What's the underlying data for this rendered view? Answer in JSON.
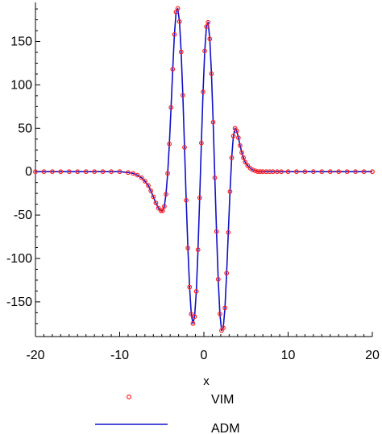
{
  "chart_data": {
    "type": "line",
    "title": "",
    "xlabel": "x",
    "ylabel": "",
    "xlim": [
      -20,
      20
    ],
    "ylim": [
      -190,
      195
    ],
    "x_ticks": [
      -20,
      -10,
      0,
      10,
      20
    ],
    "x_tick_labels": [
      "-20",
      "-10",
      "0",
      "10",
      "20"
    ],
    "y_ticks": [
      -150,
      -100,
      -50,
      0,
      50,
      100,
      150
    ],
    "y_tick_labels": [
      "-150",
      "-100",
      "-50",
      "0",
      "50",
      "100",
      "150"
    ],
    "grid": false,
    "legend_position": "bottom-center",
    "series": [
      {
        "name": "VIM",
        "style": "markers",
        "color": "#ff2222",
        "x": [
          -20,
          -19,
          -18,
          -17,
          -16,
          -15,
          -14,
          -13,
          -12,
          -11,
          -10,
          -9,
          -8.4,
          -7.9,
          -7.4,
          -7,
          -6.6,
          -6.3,
          -6,
          -5.7,
          -5.4,
          -5.1,
          -4.9,
          -4.7,
          -4.5,
          -4.3,
          -4.1,
          -3.9,
          -3.7,
          -3.5,
          -3.3,
          -3.1,
          -2.9,
          -2.7,
          -2.5,
          -2.3,
          -2.1,
          -1.9,
          -1.7,
          -1.5,
          -1.3,
          -1.1,
          -0.9,
          -0.7,
          -0.5,
          -0.3,
          -0.1,
          0.1,
          0.3,
          0.5,
          0.7,
          0.9,
          1.1,
          1.3,
          1.5,
          1.7,
          1.9,
          2.1,
          2.3,
          2.5,
          2.7,
          2.9,
          3.1,
          3.3,
          3.5,
          3.7,
          3.9,
          4.1,
          4.3,
          4.5,
          4.7,
          4.9,
          5.2,
          5.5,
          5.8,
          6.1,
          6.4,
          6.7,
          7,
          7.4,
          7.8,
          8.2,
          8.7,
          9.2,
          10,
          11,
          12,
          13,
          14,
          15,
          16,
          17,
          18,
          19,
          20
        ],
        "values": [
          0,
          0,
          0,
          0,
          0,
          0,
          0,
          0,
          0,
          0,
          0,
          -1,
          -2,
          -4,
          -7,
          -11,
          -16,
          -22,
          -29,
          -36,
          -42,
          -45,
          -45,
          -40,
          -26,
          -2,
          32,
          74,
          118,
          158,
          184,
          188,
          173,
          138,
          88,
          28,
          -33,
          -88,
          -133,
          -164,
          -175,
          -167,
          -138,
          -90,
          -30,
          33,
          92,
          139,
          167,
          172,
          153,
          113,
          57,
          -7,
          -69,
          -124,
          -164,
          -183,
          -180,
          -157,
          -117,
          -70,
          -23,
          16,
          41,
          50,
          47,
          39,
          30,
          22,
          16,
          11,
          7,
          4,
          2,
          1,
          0,
          0,
          0,
          0,
          0,
          0,
          0,
          0,
          0,
          0,
          0,
          0,
          0,
          0,
          0,
          0,
          0,
          0,
          0
        ]
      },
      {
        "name": "ADM",
        "style": "line",
        "color": "#1010c8",
        "x": [
          -20,
          -19,
          -18,
          -17,
          -16,
          -15,
          -14,
          -13,
          -12,
          -11,
          -10,
          -9,
          -8.4,
          -7.9,
          -7.4,
          -7,
          -6.6,
          -6.3,
          -6,
          -5.7,
          -5.4,
          -5.1,
          -4.9,
          -4.7,
          -4.5,
          -4.3,
          -4.1,
          -3.9,
          -3.7,
          -3.5,
          -3.3,
          -3.1,
          -2.9,
          -2.7,
          -2.5,
          -2.3,
          -2.1,
          -1.9,
          -1.7,
          -1.5,
          -1.3,
          -1.1,
          -0.9,
          -0.7,
          -0.5,
          -0.3,
          -0.1,
          0.1,
          0.3,
          0.5,
          0.7,
          0.9,
          1.1,
          1.3,
          1.5,
          1.7,
          1.9,
          2.1,
          2.3,
          2.5,
          2.7,
          2.9,
          3.1,
          3.3,
          3.5,
          3.7,
          3.9,
          4.1,
          4.3,
          4.5,
          4.7,
          4.9,
          5.2,
          5.5,
          5.8,
          6.1,
          6.4,
          6.7,
          7,
          7.4,
          7.8,
          8.2,
          8.7,
          9.2,
          10,
          11,
          12,
          13,
          14,
          15,
          16,
          17,
          18,
          19,
          20
        ],
        "values": [
          0,
          0,
          0,
          0,
          0,
          0,
          0,
          0,
          0,
          0,
          0,
          -1,
          -2,
          -4,
          -7,
          -11,
          -16,
          -22,
          -29,
          -36,
          -42,
          -45,
          -45,
          -40,
          -26,
          -2,
          32,
          74,
          118,
          158,
          184,
          188,
          173,
          138,
          88,
          28,
          -33,
          -88,
          -133,
          -164,
          -175,
          -167,
          -138,
          -90,
          -30,
          33,
          92,
          139,
          167,
          172,
          153,
          113,
          57,
          -7,
          -69,
          -124,
          -164,
          -183,
          -180,
          -157,
          -117,
          -70,
          -23,
          16,
          41,
          50,
          47,
          39,
          30,
          22,
          16,
          11,
          7,
          4,
          2,
          1,
          0,
          0,
          0,
          0,
          0,
          0,
          0,
          0,
          0,
          0,
          0,
          0,
          0,
          0,
          0,
          0,
          0,
          0,
          0
        ]
      }
    ]
  }
}
